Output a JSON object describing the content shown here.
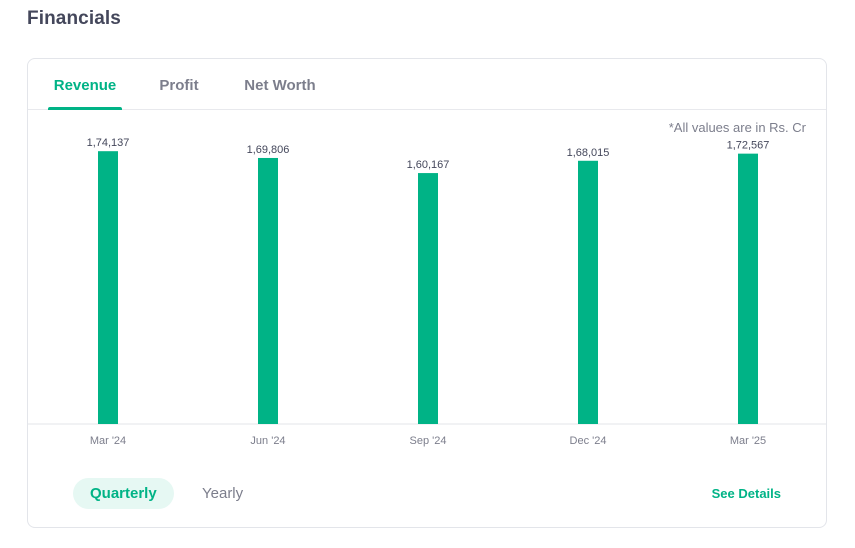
{
  "section": {
    "title": "Financials"
  },
  "tabs": [
    {
      "label": "Revenue",
      "active": true
    },
    {
      "label": "Profit",
      "active": false
    },
    {
      "label": "Net Worth",
      "active": false
    }
  ],
  "note": "*All values are in Rs. Cr",
  "chart_data": {
    "type": "bar",
    "categories": [
      "Mar '24",
      "Jun '24",
      "Sep '24",
      "Dec '24",
      "Mar '25"
    ],
    "values": [
      174137,
      169806,
      160167,
      168015,
      172567
    ],
    "value_labels": [
      "1,74,137",
      "1,69,806",
      "1,60,167",
      "1,68,015",
      "1,72,567"
    ],
    "ylim": [
      0,
      180000
    ],
    "color": "#00b386",
    "grid": false,
    "title": "",
    "xlabel": "",
    "ylabel": ""
  },
  "period_toggle": {
    "quarterly": "Quarterly",
    "yearly": "Yearly",
    "selected": "quarterly"
  },
  "see_details": "See Details",
  "colors": {
    "accent": "#00b386",
    "text_muted": "#7c7e8c",
    "text_dark": "#44475b"
  }
}
